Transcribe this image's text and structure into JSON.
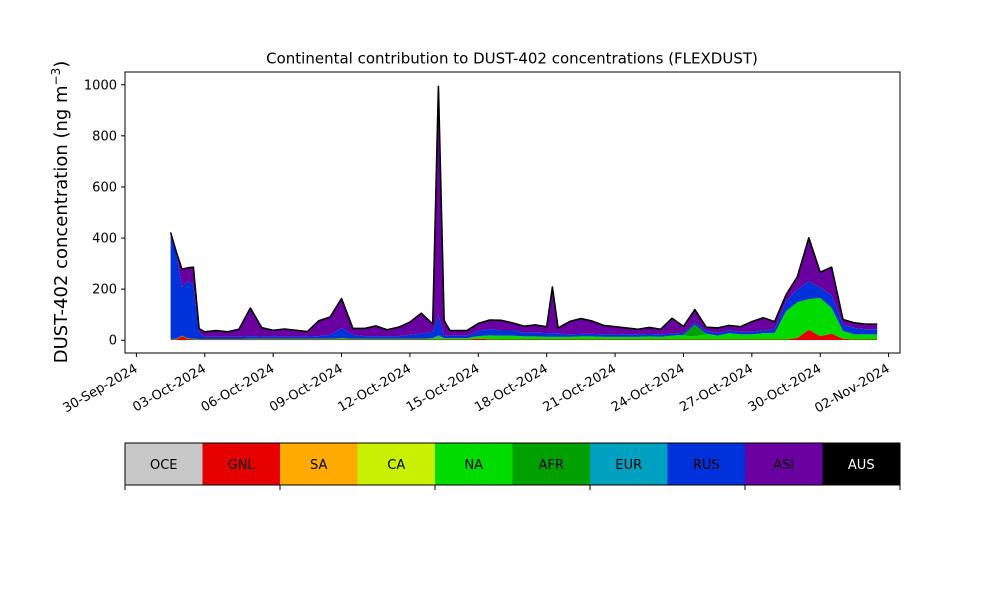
{
  "chart_data": {
    "type": "area",
    "stacked": true,
    "title": "Continental contribution to DUST-402 concentrations (FLEXDUST)",
    "ylabel_main": "DUST-402 concentration (ng m",
    "ylabel_sup": "−3",
    "ylabel_close": ")",
    "ylim": [
      -50,
      1050
    ],
    "yticks": [
      0,
      200,
      400,
      600,
      800,
      1000
    ],
    "x_axis": {
      "type": "date",
      "range": [
        "2024-09-29T12:00",
        "2024-11-02T12:00"
      ],
      "ticks": [
        "2024-09-30",
        "2024-10-03",
        "2024-10-06",
        "2024-10-09",
        "2024-10-12",
        "2024-10-15",
        "2024-10-18",
        "2024-10-21",
        "2024-10-24",
        "2024-10-27",
        "2024-10-30",
        "2024-11-02"
      ],
      "tick_labels": [
        "30-Sep-2024",
        "03-Oct-2024",
        "06-Oct-2024",
        "09-Oct-2024",
        "12-Oct-2024",
        "15-Oct-2024",
        "18-Oct-2024",
        "21-Oct-2024",
        "24-Oct-2024",
        "27-Oct-2024",
        "30-Oct-2024",
        "02-Nov-2024"
      ]
    },
    "grid": false,
    "x": [
      "2024-10-01T12:00",
      "2024-10-01T18:00",
      "2024-10-02T00:00",
      "2024-10-02T06:00",
      "2024-10-02T12:00",
      "2024-10-02T18:00",
      "2024-10-03T00:00",
      "2024-10-03T12:00",
      "2024-10-04T00:00",
      "2024-10-04T12:00",
      "2024-10-05T00:00",
      "2024-10-05T12:00",
      "2024-10-06T00:00",
      "2024-10-06T12:00",
      "2024-10-07T00:00",
      "2024-10-07T12:00",
      "2024-10-08T00:00",
      "2024-10-08T12:00",
      "2024-10-09T00:00",
      "2024-10-09T12:00",
      "2024-10-10T00:00",
      "2024-10-10T12:00",
      "2024-10-11T00:00",
      "2024-10-11T12:00",
      "2024-10-12T00:00",
      "2024-10-12T12:00",
      "2024-10-13T00:00",
      "2024-10-13T06:00",
      "2024-10-13T12:00",
      "2024-10-13T18:00",
      "2024-10-14T00:00",
      "2024-10-14T12:00",
      "2024-10-15T00:00",
      "2024-10-15T12:00",
      "2024-10-16T00:00",
      "2024-10-16T12:00",
      "2024-10-17T00:00",
      "2024-10-17T12:00",
      "2024-10-18T00:00",
      "2024-10-18T06:00",
      "2024-10-18T12:00",
      "2024-10-19T00:00",
      "2024-10-19T12:00",
      "2024-10-20T00:00",
      "2024-10-20T12:00",
      "2024-10-21T00:00",
      "2024-10-21T12:00",
      "2024-10-22T00:00",
      "2024-10-22T12:00",
      "2024-10-23T00:00",
      "2024-10-23T12:00",
      "2024-10-24T00:00",
      "2024-10-24T12:00",
      "2024-10-25T00:00",
      "2024-10-25T12:00",
      "2024-10-26T00:00",
      "2024-10-26T12:00",
      "2024-10-27T00:00",
      "2024-10-27T12:00",
      "2024-10-28T00:00",
      "2024-10-28T12:00",
      "2024-10-29T00:00",
      "2024-10-29T12:00",
      "2024-10-30T00:00",
      "2024-10-30T12:00",
      "2024-10-31T00:00",
      "2024-10-31T12:00",
      "2024-11-01T00:00",
      "2024-11-01T12:00"
    ],
    "series": [
      {
        "name": "OCE",
        "color": "#c8c8c8",
        "values": [
          1,
          1,
          1,
          1,
          1,
          1,
          1,
          1,
          1,
          1,
          1,
          1,
          1,
          1,
          1,
          1,
          1,
          1,
          1,
          1,
          1,
          1,
          1,
          1,
          1,
          1,
          1,
          1,
          1,
          1,
          1,
          1,
          1,
          1,
          1,
          1,
          1,
          1,
          1,
          1,
          1,
          1,
          1,
          1,
          1,
          1,
          1,
          1,
          1,
          1,
          1,
          1,
          1,
          1,
          1,
          1,
          1,
          1,
          1,
          1,
          1,
          1,
          1,
          1,
          1,
          1,
          1,
          1,
          1
        ]
      },
      {
        "name": "GNL",
        "color": "#e60000",
        "values": [
          2,
          3,
          15,
          5,
          3,
          2,
          2,
          2,
          2,
          2,
          2,
          2,
          2,
          2,
          2,
          2,
          2,
          2,
          2,
          2,
          2,
          2,
          2,
          2,
          2,
          2,
          2,
          3,
          2,
          2,
          2,
          2,
          5,
          3,
          2,
          2,
          2,
          2,
          2,
          2,
          2,
          2,
          2,
          2,
          2,
          2,
          2,
          2,
          2,
          2,
          2,
          2,
          2,
          2,
          2,
          2,
          2,
          2,
          2,
          2,
          2,
          8,
          40,
          15,
          25,
          5,
          2,
          2,
          2
        ]
      },
      {
        "name": "SA",
        "color": "#ffaa00",
        "values": [
          0,
          0,
          0,
          0,
          0,
          0,
          0,
          0,
          0,
          0,
          0,
          0,
          0,
          0,
          0,
          0,
          0,
          0,
          0,
          0,
          0,
          0,
          0,
          0,
          0,
          0,
          0,
          0,
          0,
          0,
          0,
          0,
          0,
          0,
          0,
          0,
          0,
          0,
          0,
          0,
          0,
          0,
          0,
          0,
          0,
          0,
          0,
          0,
          0,
          0,
          0,
          0,
          0,
          0,
          0,
          0,
          0,
          0,
          0,
          0,
          0,
          0,
          0,
          0,
          0,
          0,
          0,
          0,
          0
        ]
      },
      {
        "name": "CA",
        "color": "#c8f000",
        "values": [
          0,
          0,
          0,
          0,
          0,
          0,
          0,
          0,
          0,
          0,
          0,
          0,
          0,
          0,
          0,
          0,
          0,
          0,
          0,
          0,
          0,
          0,
          0,
          0,
          0,
          0,
          0,
          0,
          0,
          0,
          0,
          0,
          0,
          0,
          0,
          0,
          0,
          0,
          0,
          0,
          0,
          0,
          0,
          0,
          0,
          0,
          0,
          0,
          0,
          0,
          0,
          0,
          0,
          0,
          0,
          0,
          0,
          0,
          0,
          0,
          0,
          0,
          0,
          0,
          0,
          0,
          0,
          0,
          0
        ]
      },
      {
        "name": "NA",
        "color": "#00dc00",
        "values": [
          2,
          2,
          2,
          2,
          2,
          2,
          2,
          2,
          2,
          2,
          3,
          3,
          3,
          3,
          3,
          3,
          3,
          3,
          5,
          3,
          3,
          3,
          3,
          3,
          3,
          3,
          5,
          8,
          5,
          5,
          5,
          5,
          10,
          15,
          15,
          15,
          12,
          12,
          10,
          10,
          10,
          10,
          12,
          12,
          10,
          10,
          10,
          10,
          12,
          10,
          15,
          15,
          12,
          20,
          15,
          25,
          20,
          20,
          25,
          25,
          110,
          140,
          120,
          150,
          100,
          30,
          20,
          20,
          20
        ]
      },
      {
        "name": "AFR",
        "color": "#00a000",
        "values": [
          0,
          0,
          0,
          0,
          0,
          0,
          0,
          0,
          0,
          0,
          0,
          0,
          0,
          0,
          0,
          0,
          0,
          0,
          0,
          0,
          0,
          0,
          0,
          0,
          0,
          0,
          0,
          2,
          0,
          0,
          0,
          0,
          0,
          0,
          0,
          0,
          0,
          0,
          0,
          0,
          0,
          0,
          0,
          0,
          0,
          0,
          0,
          0,
          0,
          0,
          0,
          3,
          45,
          3,
          0,
          0,
          0,
          0,
          0,
          0,
          0,
          0,
          0,
          0,
          0,
          0,
          0,
          0,
          0
        ]
      },
      {
        "name": "EUR",
        "color": "#00a0c0",
        "values": [
          0,
          0,
          0,
          0,
          0,
          0,
          0,
          0,
          0,
          0,
          0,
          0,
          0,
          0,
          0,
          0,
          0,
          0,
          0,
          0,
          0,
          0,
          0,
          0,
          0,
          0,
          0,
          5,
          0,
          0,
          0,
          0,
          0,
          0,
          0,
          0,
          0,
          0,
          0,
          0,
          0,
          0,
          0,
          0,
          0,
          0,
          0,
          0,
          0,
          0,
          0,
          0,
          0,
          0,
          0,
          0,
          0,
          0,
          0,
          0,
          0,
          0,
          0,
          0,
          0,
          0,
          0,
          0,
          0
        ]
      },
      {
        "name": "RUS",
        "color": "#0032dc",
        "values": [
          412,
          335,
          190,
          225,
          210,
          25,
          8,
          8,
          8,
          8,
          10,
          8,
          8,
          8,
          8,
          8,
          10,
          15,
          40,
          15,
          10,
          10,
          10,
          10,
          15,
          20,
          25,
          80,
          10,
          10,
          10,
          10,
          20,
          25,
          20,
          20,
          15,
          15,
          15,
          15,
          15,
          10,
          10,
          10,
          10,
          10,
          10,
          10,
          10,
          10,
          8,
          8,
          10,
          10,
          10,
          10,
          10,
          10,
          10,
          15,
          40,
          50,
          70,
          40,
          50,
          25,
          25,
          20,
          20
        ]
      },
      {
        "name": "ASI",
        "color": "#6a00a0",
        "values": [
          5,
          5,
          70,
          50,
          70,
          15,
          20,
          25,
          20,
          30,
          110,
          35,
          25,
          30,
          25,
          20,
          60,
          70,
          115,
          25,
          30,
          40,
          25,
          35,
          50,
          80,
          30,
          895,
          60,
          20,
          20,
          20,
          30,
          35,
          40,
          30,
          25,
          30,
          25,
          180,
          20,
          50,
          60,
          50,
          35,
          30,
          25,
          20,
          25,
          20,
          60,
          25,
          50,
          15,
          20,
          20,
          20,
          40,
          50,
          30,
          25,
          50,
          170,
          60,
          110,
          20,
          20,
          20,
          20
        ]
      },
      {
        "name": "AUS",
        "color": "#000000",
        "values": [
          0,
          0,
          0,
          0,
          0,
          0,
          0,
          0,
          0,
          0,
          0,
          0,
          0,
          0,
          0,
          0,
          0,
          0,
          0,
          0,
          0,
          0,
          0,
          0,
          0,
          0,
          0,
          0,
          0,
          0,
          0,
          0,
          0,
          0,
          0,
          0,
          0,
          0,
          0,
          0,
          0,
          0,
          0,
          0,
          0,
          0,
          0,
          0,
          0,
          0,
          0,
          0,
          0,
          0,
          0,
          0,
          0,
          0,
          0,
          0,
          0,
          0,
          0,
          0,
          0,
          0,
          0,
          0,
          0
        ]
      }
    ],
    "legend": {
      "placement": "colorbar-below",
      "items": [
        {
          "label": "OCE",
          "color": "#c8c8c8",
          "text_color": "#000000"
        },
        {
          "label": "GNL",
          "color": "#e60000",
          "text_color": "#000000"
        },
        {
          "label": "SA",
          "color": "#ffaa00",
          "text_color": "#000000"
        },
        {
          "label": "CA",
          "color": "#c8f000",
          "text_color": "#000000"
        },
        {
          "label": "NA",
          "color": "#00dc00",
          "text_color": "#000000"
        },
        {
          "label": "AFR",
          "color": "#00a000",
          "text_color": "#000000"
        },
        {
          "label": "EUR",
          "color": "#00a0c0",
          "text_color": "#000000"
        },
        {
          "label": "RUS",
          "color": "#0032dc",
          "text_color": "#000000"
        },
        {
          "label": "ASI",
          "color": "#6a00a0",
          "text_color": "#000000"
        },
        {
          "label": "AUS",
          "color": "#000000",
          "text_color": "#ffffff"
        }
      ]
    }
  }
}
